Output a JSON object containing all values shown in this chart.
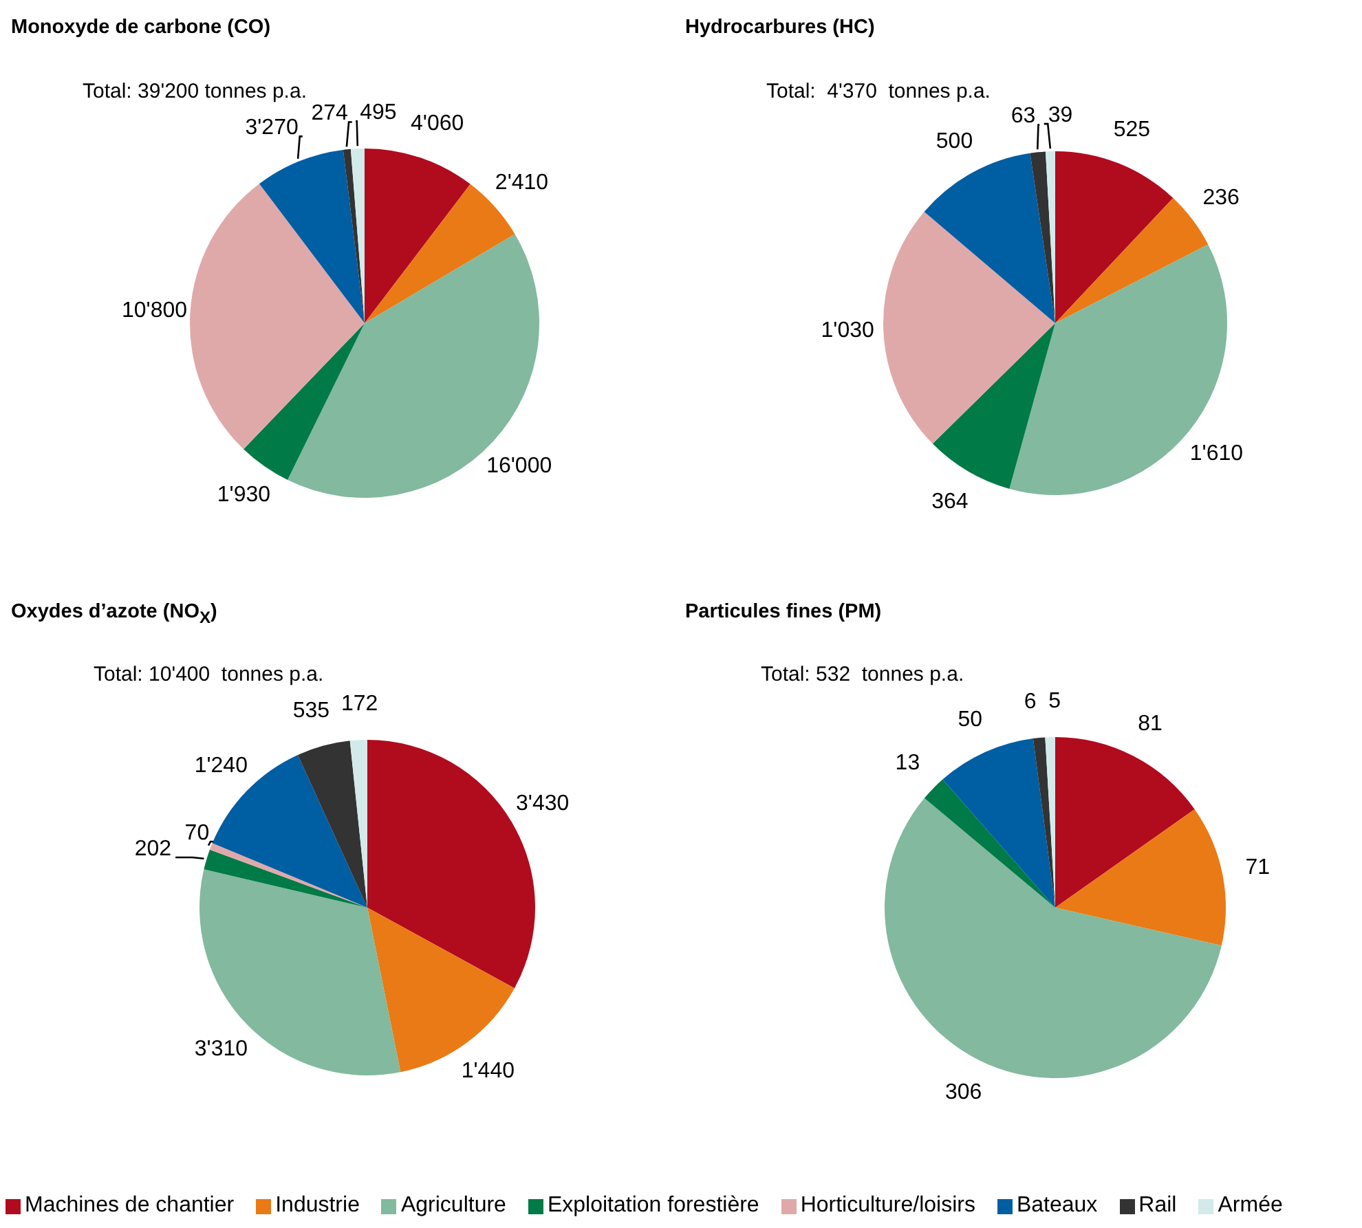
{
  "chart_data": [
    {
      "type": "pie",
      "title": "Monoxyde de carbone (CO)",
      "annotations": [
        "Total: 39'200 tonnes p.a."
      ],
      "legend": "bottom",
      "categories": [
        "Machines de chantier",
        "Industrie",
        "Agriculture",
        "Exploitation forestière",
        "Horticulture/loisirs",
        "Bateaux",
        "Rail",
        "Armée"
      ],
      "values": [
        4060,
        2410,
        16000,
        1930,
        10800,
        3270,
        274,
        495
      ],
      "value_labels": [
        "4'060",
        "2'410",
        "16'000",
        "1'930",
        "10'800",
        "3'270",
        "274",
        "495"
      ],
      "colors": [
        "#b10b1e",
        "#ea7a15",
        "#82b99f",
        "#007a47",
        "#e0a9a9",
        "#005ea3",
        "#333333",
        "#d3eaea"
      ]
    },
    {
      "type": "pie",
      "title": "Hydrocarbures (HC)",
      "annotations": [
        "Total:  4'370  tonnes p.a."
      ],
      "categories": [
        null,
        null,
        null,
        null,
        null,
        null,
        null,
        null
      ],
      "values": [
        525,
        236,
        1610,
        364,
        1030,
        500,
        63,
        39
      ],
      "value_labels": [
        "525",
        "236",
        "1'610",
        "364",
        "1'030",
        "500",
        "63",
        "39"
      ],
      "colors": [
        "#b10b1e",
        "#ea7a15",
        "#82b99f",
        "#007a47",
        "#e0a9a9",
        "#005ea3",
        "#333333",
        "#d3eaea"
      ]
    },
    {
      "type": "pie",
      "title": "Oxydes d’azote (NO$_{X}$)",
      "annotations": [
        "Total: 10'400  tonnes p.a."
      ],
      "categories": [
        null,
        null,
        null,
        null,
        null,
        null,
        null,
        null
      ],
      "values": [
        3430,
        1440,
        3310,
        202,
        70,
        1240,
        535,
        172
      ],
      "value_labels": [
        "3'430",
        "1'440",
        "3'310",
        "202",
        "70",
        "1'240",
        "535",
        "172"
      ],
      "colors": [
        "#b10b1e",
        "#ea7a15",
        "#82b99f",
        "#007a47",
        "#e0a9a9",
        "#005ea3",
        "#333333",
        "#d3eaea"
      ]
    },
    {
      "type": "pie",
      "title": "Particules fines (PM)",
      "annotations": [
        "Total: 532  tonnes p.a."
      ],
      "categories": [
        null,
        null,
        null,
        null,
        null,
        null,
        null,
        null
      ],
      "values": [
        81,
        71,
        306,
        13,
        null,
        50,
        6,
        5
      ],
      "value_labels": [
        "81",
        "71",
        "306",
        "13",
        null,
        "50",
        "6",
        "5"
      ],
      "colors": [
        "#b10b1e",
        "#ea7a15",
        "#82b99f",
        "#007a47",
        "#e0a9a9",
        "#005ea3",
        "#333333",
        "#d3eaea"
      ]
    }
  ]
}
